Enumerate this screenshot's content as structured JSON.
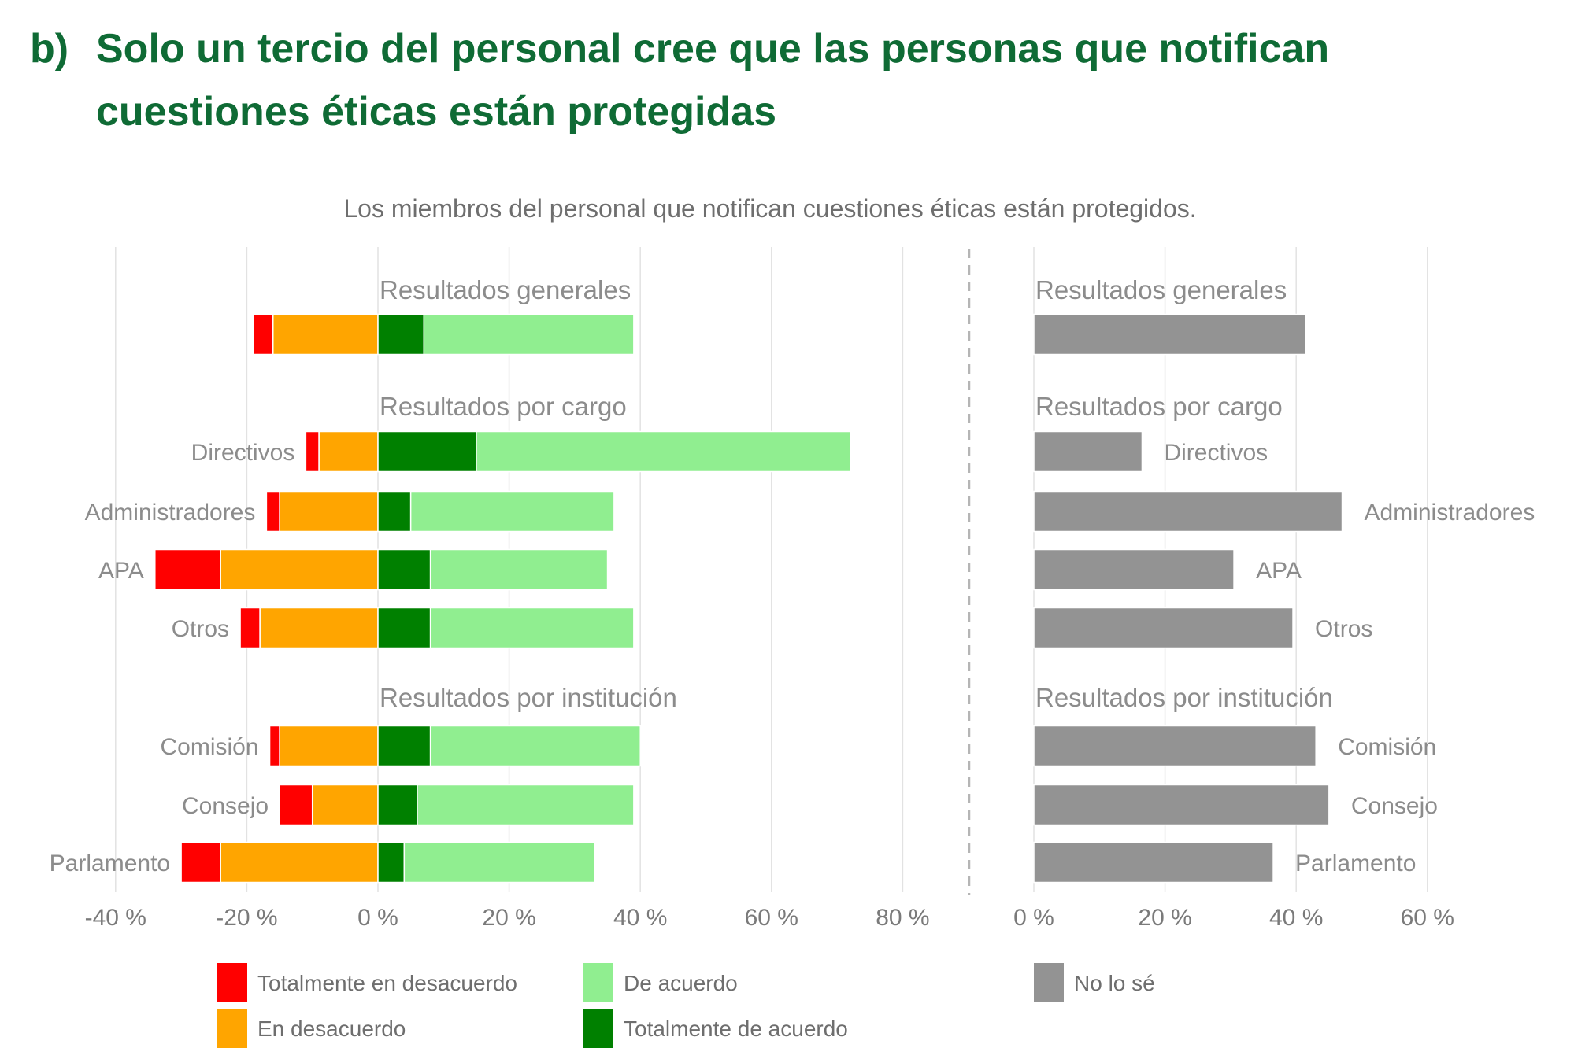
{
  "header": {
    "label": "b)",
    "title_line1": "Solo un tercio del personal cree que las personas que notifican",
    "title_line2": "cuestiones éticas están protegidas"
  },
  "chart_data": {
    "type": "bar",
    "orientation": "horizontal",
    "stacked": true,
    "title": "Los miembros del personal que notifican cuestiones éticas están protegidos.",
    "colors": {
      "Totalmente en desacuerdo": "#ff0000",
      "En desacuerdo": "#ffa500",
      "Totalmente de acuerdo": "#008000",
      "De acuerdo": "#90ee90",
      "No lo sé": "#939393"
    },
    "groups": [
      {
        "label": "Resultados generales",
        "categories": [
          ""
        ]
      },
      {
        "label": "Resultados por cargo",
        "categories": [
          "Directivos",
          "Administradores",
          "APA",
          "Otros"
        ]
      },
      {
        "label": "Resultados por institución",
        "categories": [
          "Comisión",
          "Consejo",
          "Parlamento"
        ]
      }
    ],
    "categories": [
      "Resultados generales",
      "Directivos",
      "Administradores",
      "APA",
      "Otros",
      "Comisión",
      "Consejo",
      "Parlamento"
    ],
    "left_panel": {
      "xlim": [
        -40,
        80
      ],
      "ticks": [
        -40,
        -20,
        0,
        20,
        40,
        60,
        80
      ],
      "tick_labels": [
        "-40 %",
        "-20 %",
        "0 %",
        "20 %",
        "40 %",
        "60 %",
        "80 %"
      ],
      "series": [
        {
          "name": "Totalmente en desacuerdo",
          "side": "negative",
          "values": [
            3,
            2,
            2,
            10,
            3,
            1.5,
            5,
            6
          ]
        },
        {
          "name": "En desacuerdo",
          "side": "negative",
          "values": [
            16,
            9,
            15,
            24,
            18,
            15,
            10,
            24
          ]
        },
        {
          "name": "Totalmente de acuerdo",
          "side": "positive",
          "values": [
            7,
            15,
            5,
            8,
            8,
            8,
            6,
            4
          ]
        },
        {
          "name": "De acuerdo",
          "side": "positive",
          "values": [
            32,
            57,
            31,
            27,
            31,
            32,
            33,
            29
          ]
        }
      ]
    },
    "right_panel": {
      "xlim": [
        0,
        60
      ],
      "ticks": [
        0,
        20,
        40,
        60
      ],
      "tick_labels": [
        "0 %",
        "20 %",
        "40 %",
        "60 %"
      ],
      "series": [
        {
          "name": "No lo sé",
          "values": [
            41.5,
            16.5,
            47,
            30.5,
            39.5,
            43,
            45,
            36.5
          ]
        }
      ]
    },
    "legend": [
      {
        "name": "Totalmente en desacuerdo",
        "color": "#ff0000"
      },
      {
        "name": "En desacuerdo",
        "color": "#ffa500"
      },
      {
        "name": "De acuerdo",
        "color": "#90ee90"
      },
      {
        "name": "Totalmente de acuerdo",
        "color": "#008000"
      },
      {
        "name": "No lo sé",
        "color": "#939393"
      }
    ],
    "legend_position": "bottom",
    "grid": true
  }
}
